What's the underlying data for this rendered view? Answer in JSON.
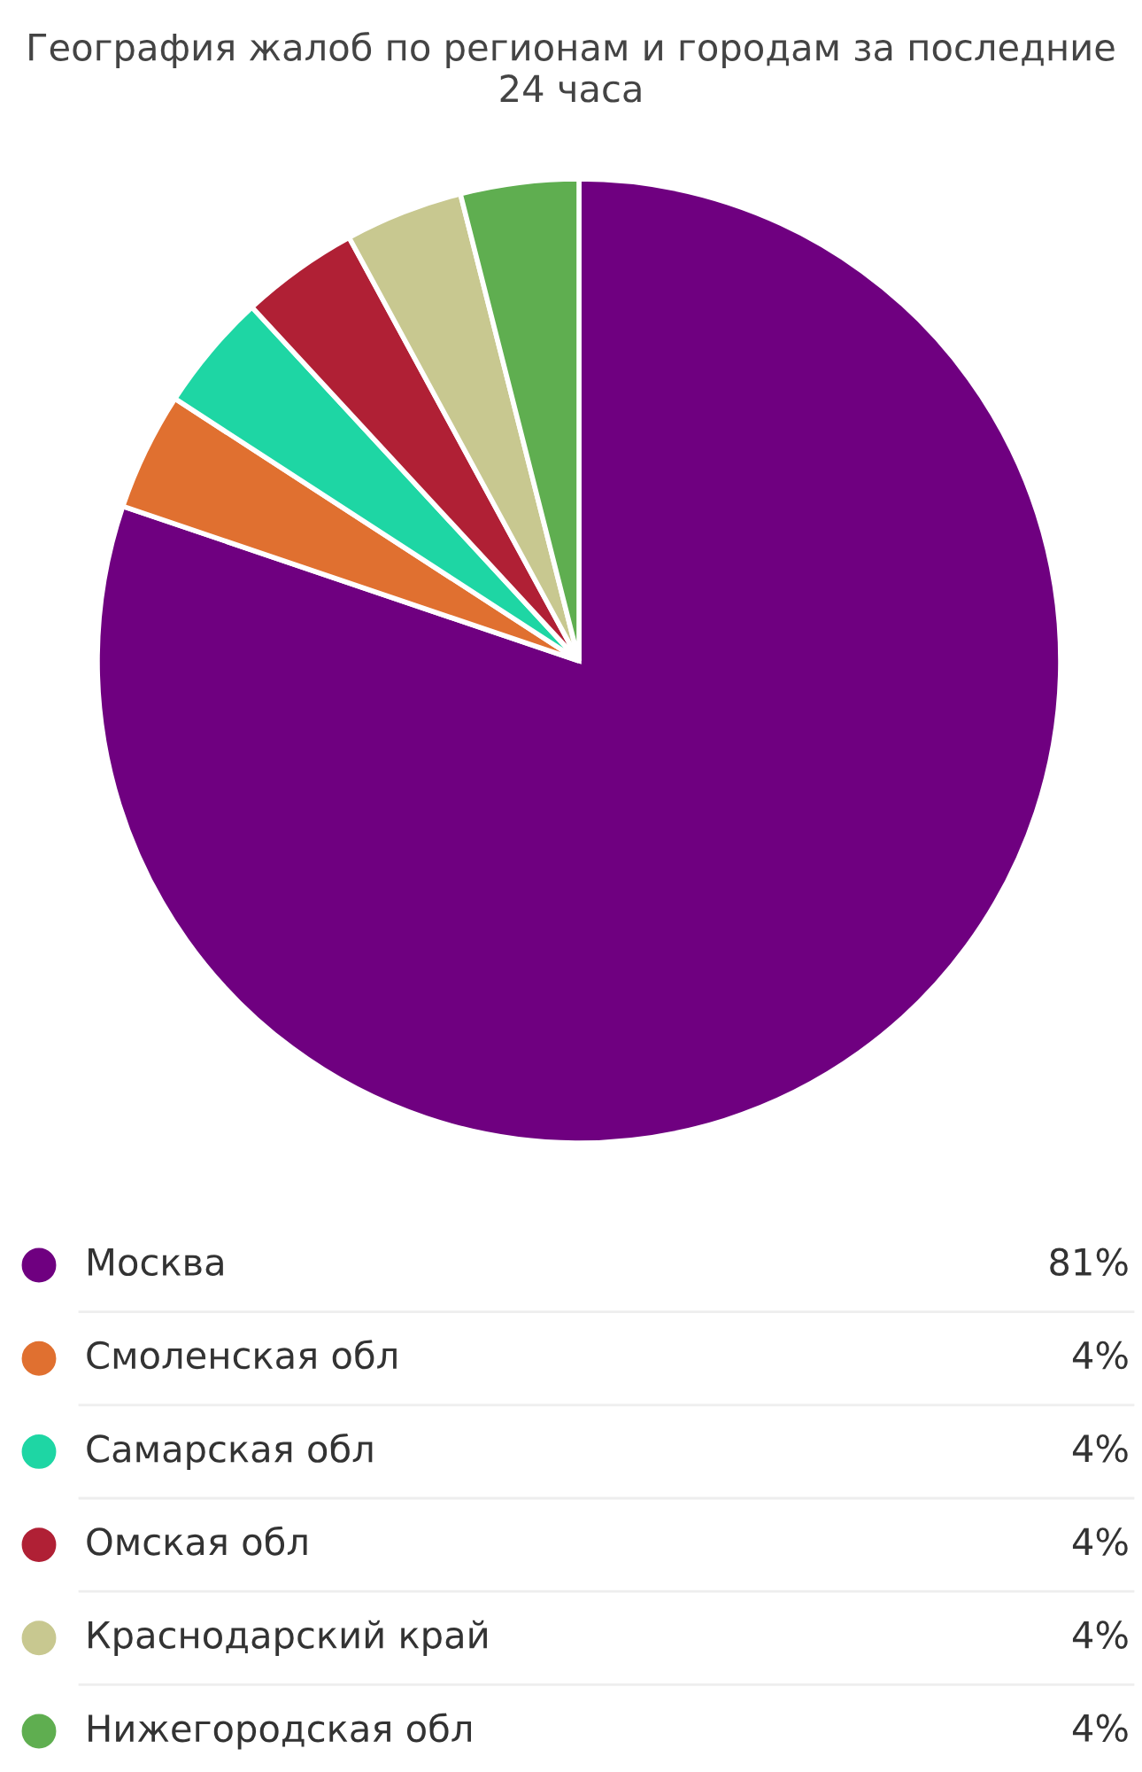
{
  "chart_data": {
    "type": "pie",
    "title": "География жалоб по регионам и городам за последние 24 часа",
    "categories": [
      "Москва",
      "Смоленская обл",
      "Самарская обл",
      "Омская обл",
      "Краснодарский край",
      "Нижегородская обл"
    ],
    "values": [
      81,
      4,
      4,
      4,
      4,
      4
    ],
    "value_labels": [
      "81%",
      "4%",
      "4%",
      "4%",
      "4%",
      "4%"
    ],
    "colors": [
      "#6f0080",
      "#e07030",
      "#1ed6a4",
      "#b02035",
      "#c8c890",
      "#5fae50"
    ],
    "legend": "bottom"
  }
}
